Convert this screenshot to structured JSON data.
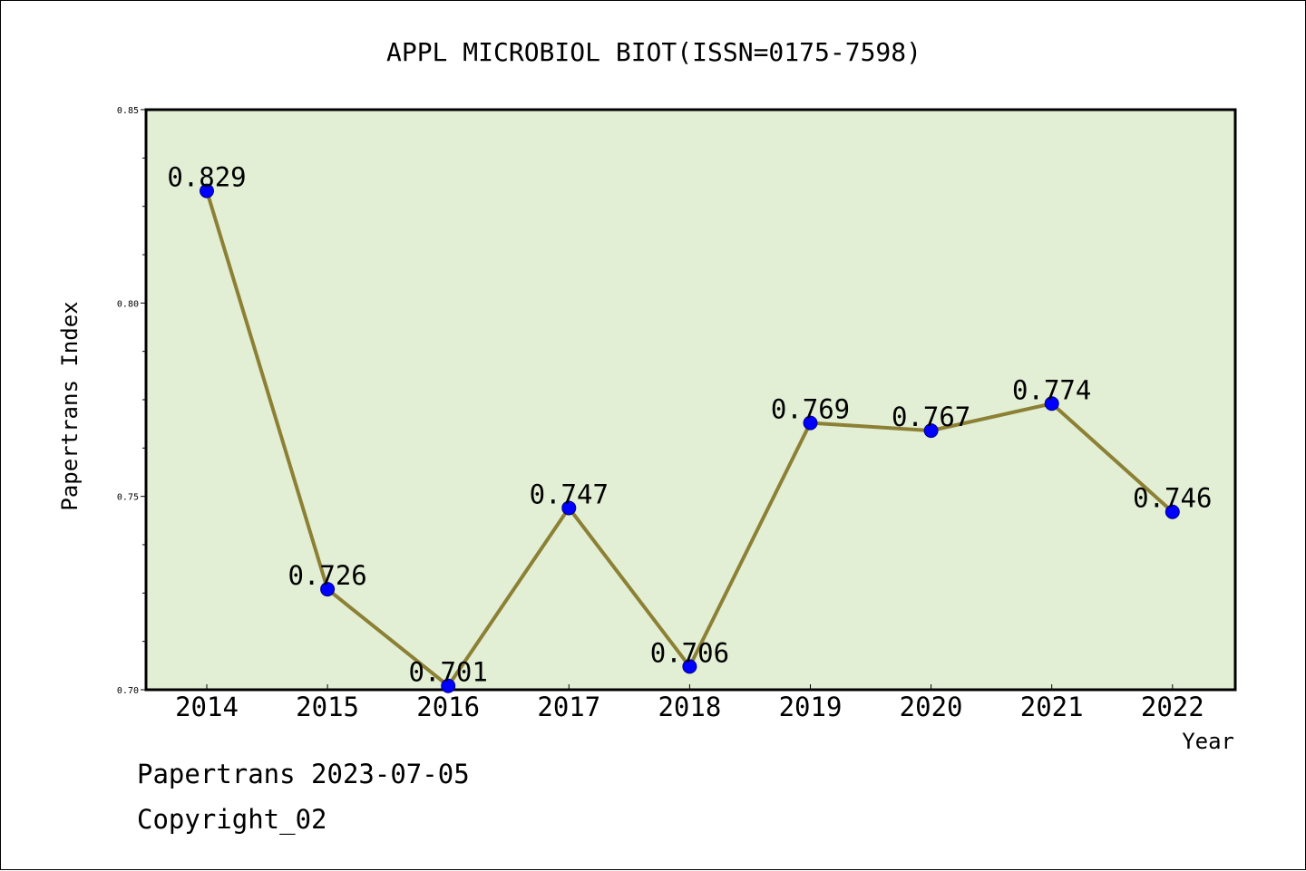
{
  "chart_data": {
    "type": "line",
    "title": "APPL MICROBIOL BIOT(ISSN=0175-7598)",
    "xlabel": "Year",
    "ylabel": "Papertrans Index",
    "categories": [
      "2014",
      "2015",
      "2016",
      "2017",
      "2018",
      "2019",
      "2020",
      "2021",
      "2022"
    ],
    "values": [
      0.829,
      0.726,
      0.701,
      0.747,
      0.706,
      0.769,
      0.767,
      0.774,
      0.746
    ],
    "data_labels": [
      "0.829",
      "0.726",
      "0.701",
      "0.747",
      "0.706",
      "0.769",
      "0.767",
      "0.774",
      "0.746"
    ],
    "ylim": [
      0.7,
      0.85
    ],
    "yticks": [
      "0.70",
      "0.75",
      "0.80",
      "0.85"
    ],
    "grid": false,
    "legend": "none",
    "colors": {
      "plot_background": "#e2efd4",
      "line": "#8c8035",
      "marker": "#0000ff"
    }
  },
  "footer": {
    "line1": "Papertrans 2023-07-05",
    "line2": "Copyright_02"
  }
}
